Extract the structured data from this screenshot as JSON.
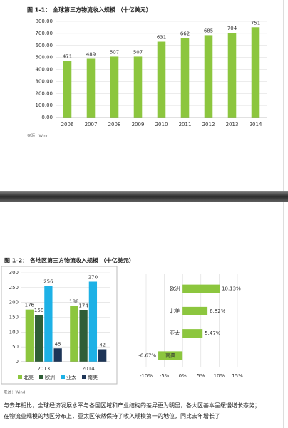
{
  "chart_data": [
    {
      "type": "bar",
      "title": "图 1-1： 全球第三方物流收入规模 （十亿美元）",
      "categories": [
        "2006",
        "2007",
        "2008",
        "2009",
        "2010",
        "2011",
        "2012",
        "2013",
        "2014"
      ],
      "values": [
        471,
        489,
        507,
        507,
        631,
        662,
        685,
        704,
        751
      ],
      "color": "#8cc63e",
      "ylim": [
        0,
        800
      ],
      "yticks": [
        {
          "value": 0,
          "label": "0.00"
        },
        {
          "value": 100,
          "label": "100.00"
        },
        {
          "value": 200,
          "label": "200.00"
        },
        {
          "value": 300,
          "label": "300.00"
        },
        {
          "value": 400,
          "label": "400.00"
        },
        {
          "value": 500,
          "label": "500.00"
        },
        {
          "value": 600,
          "label": "600.00"
        },
        {
          "value": 700,
          "label": "700.00"
        },
        {
          "value": 800,
          "label": "800.00"
        }
      ],
      "grid": true,
      "source": "来源：Wind"
    },
    {
      "type": "bar",
      "title": "图 1-2： 各地区第三方物流收入规模 （十亿美元）",
      "categories": [
        "2013",
        "2014"
      ],
      "series": [
        {
          "name": "北美",
          "color": "#8cc63e",
          "values": [
            176,
            188
          ]
        },
        {
          "name": "欧洲",
          "color": "#2f5e37",
          "values": [
            158,
            174
          ]
        },
        {
          "name": "亚太",
          "color": "#1db1e6",
          "values": [
            256,
            270
          ]
        },
        {
          "name": "南美",
          "color": "#1d3557",
          "values": [
            45,
            42
          ]
        }
      ],
      "ylim": [
        0,
        300
      ],
      "yticks": [
        0,
        50,
        100,
        150,
        200,
        250,
        300
      ],
      "grid": true,
      "legend": "bottom",
      "source": "来源：Wind"
    },
    {
      "type": "barh",
      "categories": [
        "欧洲",
        "北美",
        "亚太",
        "南美"
      ],
      "values": [
        10.13,
        6.82,
        5.47,
        -6.67
      ],
      "value_labels": [
        "10.13%",
        "6.82%",
        "5.47%",
        "-6.67%"
      ],
      "color": "#8cc63e",
      "xlim": [
        -10,
        15
      ],
      "xticks": [
        {
          "value": -10,
          "label": "-10%"
        },
        {
          "value": -5,
          "label": "-5%"
        },
        {
          "value": 0,
          "label": "0%"
        },
        {
          "value": 5,
          "label": "5%"
        },
        {
          "value": 10,
          "label": "10%"
        },
        {
          "value": 15,
          "label": "15%"
        }
      ],
      "grid": true
    }
  ],
  "paragraph": "与去年相比，全球经济发展水平与各国区域和产业结构的差异更为明显，各大区基本呈缓慢增长态势；在物流业规模的地区分布上，亚太区依然保持了收入规模第一的地位，同比去年增长了"
}
